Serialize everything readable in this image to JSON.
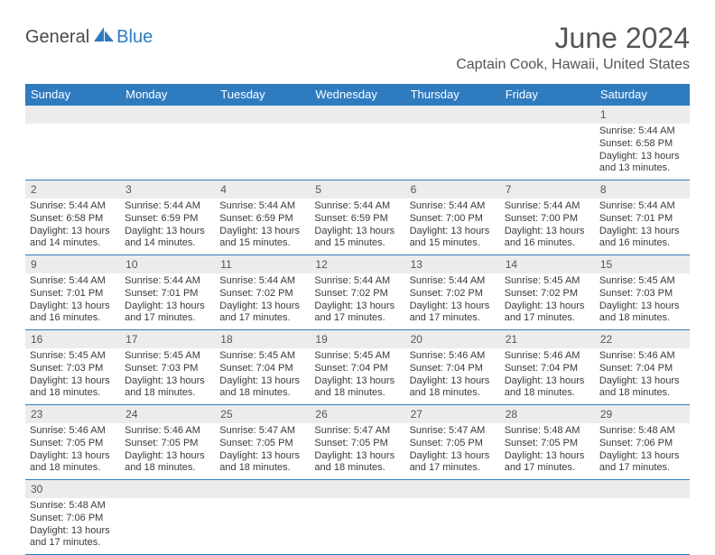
{
  "logo": {
    "part1": "General",
    "part2": "Blue"
  },
  "title": "June 2024",
  "location": "Captain Cook, Hawaii, United States",
  "colors": {
    "header_bg": "#2f7bbf",
    "daynum_bg": "#ececec",
    "border": "#2f7bbf",
    "text_dark": "#3a3a3a",
    "text_muted": "#555555"
  },
  "dow": [
    "Sunday",
    "Monday",
    "Tuesday",
    "Wednesday",
    "Thursday",
    "Friday",
    "Saturday"
  ],
  "weeks": [
    {
      "nums": [
        "",
        "",
        "",
        "",
        "",
        "",
        "1"
      ],
      "days": [
        null,
        null,
        null,
        null,
        null,
        null,
        {
          "sunrise": "5:44 AM",
          "sunset": "6:58 PM",
          "day_h": 13,
          "day_m": 13
        }
      ]
    },
    {
      "nums": [
        "2",
        "3",
        "4",
        "5",
        "6",
        "7",
        "8"
      ],
      "days": [
        {
          "sunrise": "5:44 AM",
          "sunset": "6:58 PM",
          "day_h": 13,
          "day_m": 14
        },
        {
          "sunrise": "5:44 AM",
          "sunset": "6:59 PM",
          "day_h": 13,
          "day_m": 14
        },
        {
          "sunrise": "5:44 AM",
          "sunset": "6:59 PM",
          "day_h": 13,
          "day_m": 15
        },
        {
          "sunrise": "5:44 AM",
          "sunset": "6:59 PM",
          "day_h": 13,
          "day_m": 15
        },
        {
          "sunrise": "5:44 AM",
          "sunset": "7:00 PM",
          "day_h": 13,
          "day_m": 15
        },
        {
          "sunrise": "5:44 AM",
          "sunset": "7:00 PM",
          "day_h": 13,
          "day_m": 16
        },
        {
          "sunrise": "5:44 AM",
          "sunset": "7:01 PM",
          "day_h": 13,
          "day_m": 16
        }
      ]
    },
    {
      "nums": [
        "9",
        "10",
        "11",
        "12",
        "13",
        "14",
        "15"
      ],
      "days": [
        {
          "sunrise": "5:44 AM",
          "sunset": "7:01 PM",
          "day_h": 13,
          "day_m": 16
        },
        {
          "sunrise": "5:44 AM",
          "sunset": "7:01 PM",
          "day_h": 13,
          "day_m": 17
        },
        {
          "sunrise": "5:44 AM",
          "sunset": "7:02 PM",
          "day_h": 13,
          "day_m": 17
        },
        {
          "sunrise": "5:44 AM",
          "sunset": "7:02 PM",
          "day_h": 13,
          "day_m": 17
        },
        {
          "sunrise": "5:44 AM",
          "sunset": "7:02 PM",
          "day_h": 13,
          "day_m": 17
        },
        {
          "sunrise": "5:45 AM",
          "sunset": "7:02 PM",
          "day_h": 13,
          "day_m": 17
        },
        {
          "sunrise": "5:45 AM",
          "sunset": "7:03 PM",
          "day_h": 13,
          "day_m": 18
        }
      ]
    },
    {
      "nums": [
        "16",
        "17",
        "18",
        "19",
        "20",
        "21",
        "22"
      ],
      "days": [
        {
          "sunrise": "5:45 AM",
          "sunset": "7:03 PM",
          "day_h": 13,
          "day_m": 18
        },
        {
          "sunrise": "5:45 AM",
          "sunset": "7:03 PM",
          "day_h": 13,
          "day_m": 18
        },
        {
          "sunrise": "5:45 AM",
          "sunset": "7:04 PM",
          "day_h": 13,
          "day_m": 18
        },
        {
          "sunrise": "5:45 AM",
          "sunset": "7:04 PM",
          "day_h": 13,
          "day_m": 18
        },
        {
          "sunrise": "5:46 AM",
          "sunset": "7:04 PM",
          "day_h": 13,
          "day_m": 18
        },
        {
          "sunrise": "5:46 AM",
          "sunset": "7:04 PM",
          "day_h": 13,
          "day_m": 18
        },
        {
          "sunrise": "5:46 AM",
          "sunset": "7:04 PM",
          "day_h": 13,
          "day_m": 18
        }
      ]
    },
    {
      "nums": [
        "23",
        "24",
        "25",
        "26",
        "27",
        "28",
        "29"
      ],
      "days": [
        {
          "sunrise": "5:46 AM",
          "sunset": "7:05 PM",
          "day_h": 13,
          "day_m": 18
        },
        {
          "sunrise": "5:46 AM",
          "sunset": "7:05 PM",
          "day_h": 13,
          "day_m": 18
        },
        {
          "sunrise": "5:47 AM",
          "sunset": "7:05 PM",
          "day_h": 13,
          "day_m": 18
        },
        {
          "sunrise": "5:47 AM",
          "sunset": "7:05 PM",
          "day_h": 13,
          "day_m": 18
        },
        {
          "sunrise": "5:47 AM",
          "sunset": "7:05 PM",
          "day_h": 13,
          "day_m": 17
        },
        {
          "sunrise": "5:48 AM",
          "sunset": "7:05 PM",
          "day_h": 13,
          "day_m": 17
        },
        {
          "sunrise": "5:48 AM",
          "sunset": "7:06 PM",
          "day_h": 13,
          "day_m": 17
        }
      ]
    },
    {
      "nums": [
        "30",
        "",
        "",
        "",
        "",
        "",
        ""
      ],
      "days": [
        {
          "sunrise": "5:48 AM",
          "sunset": "7:06 PM",
          "day_h": 13,
          "day_m": 17
        },
        null,
        null,
        null,
        null,
        null,
        null
      ]
    }
  ]
}
